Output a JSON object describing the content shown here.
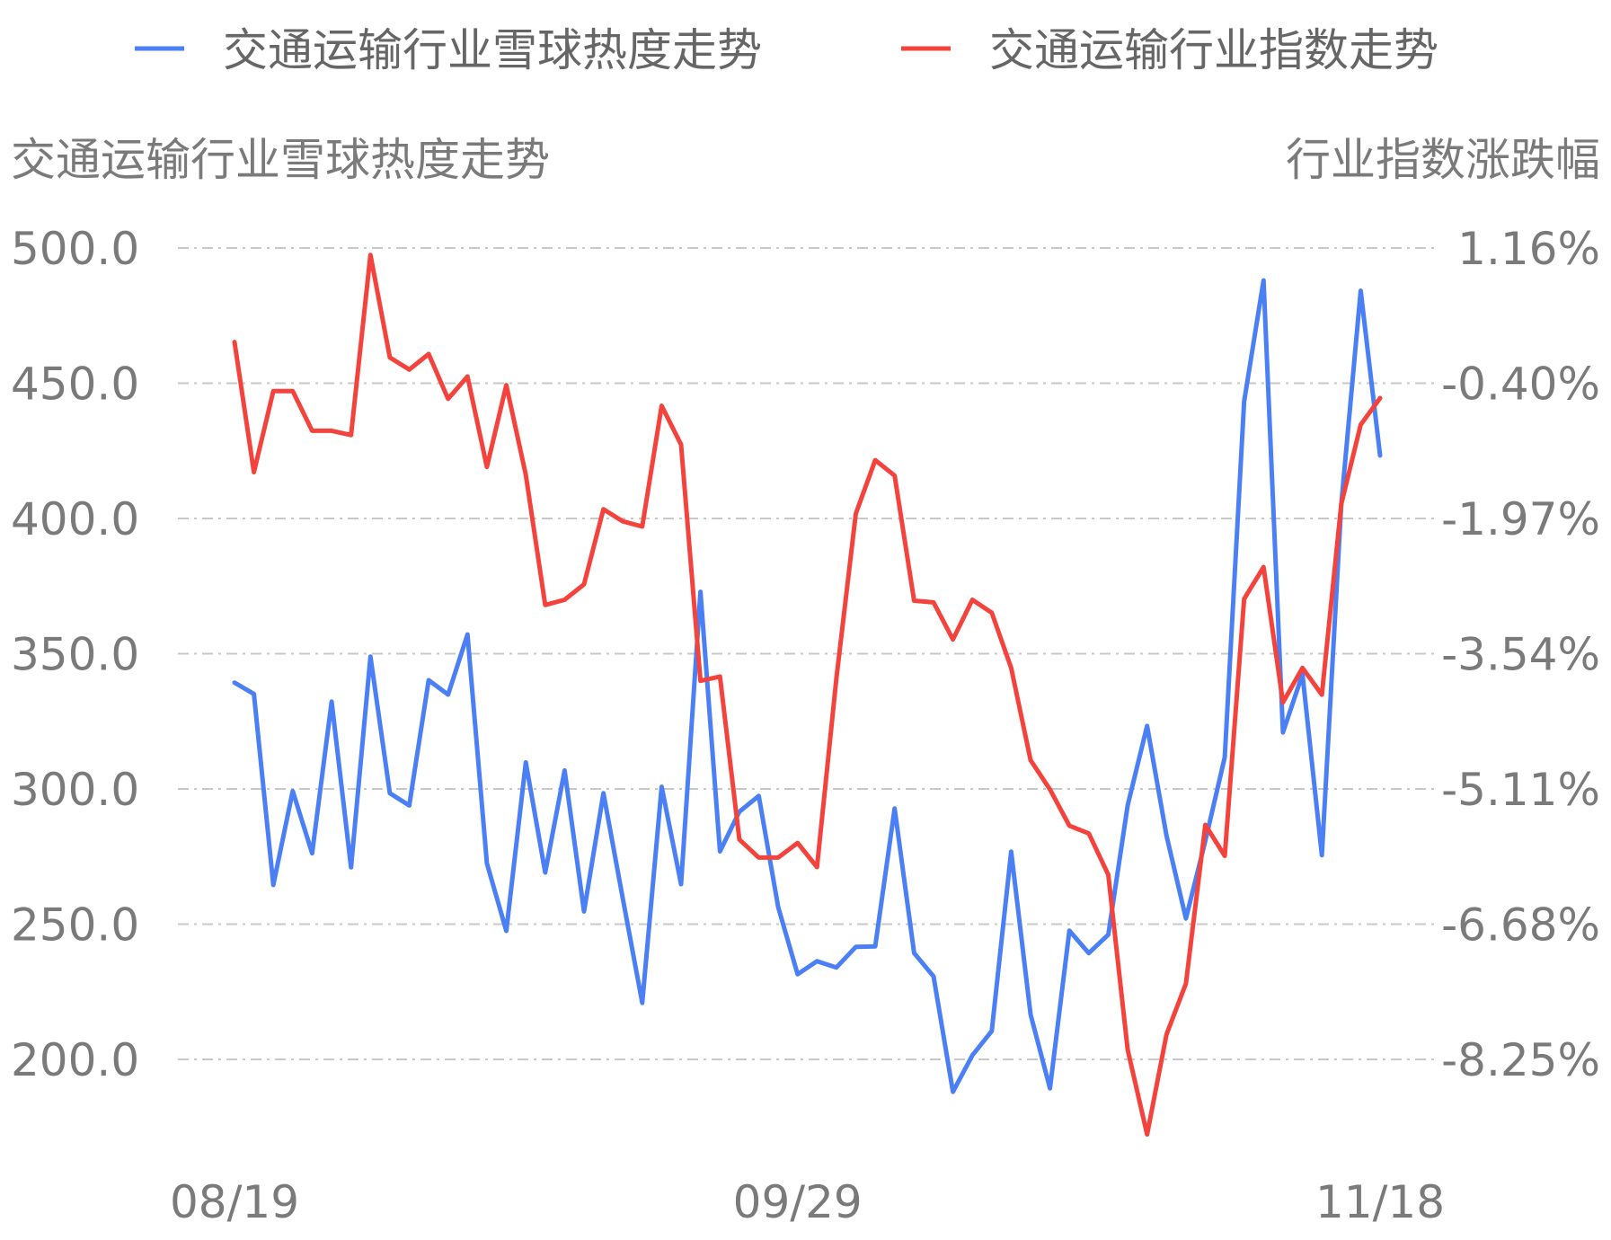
{
  "chart_data": {
    "type": "line",
    "x_labels_shown": [
      "08/19",
      "09/29",
      "11/18"
    ],
    "left_axis": {
      "label": "交通运输行业雪球热度走势",
      "ticks": [
        "500.0",
        "450.0",
        "400.0",
        "350.0",
        "300.0",
        "250.0",
        "200.0"
      ],
      "ylim": [
        200.0,
        500.0
      ]
    },
    "right_axis": {
      "label": "行业指数涨跌幅",
      "ticks": [
        "1.16%",
        "-0.40%",
        "-1.97%",
        "-3.54%",
        "-5.11%",
        "-6.68%",
        "-8.25%"
      ],
      "ylim": [
        -8.25,
        1.16
      ]
    },
    "grid": "horizontal dashed",
    "legend_position": "top",
    "series": [
      {
        "name": "交通运输行业雪球热度走势",
        "axis": "left",
        "color": "#4a7ff5",
        "values": [
          339.3,
          335.1,
          264.5,
          299.2,
          276.2,
          332.3,
          271.0,
          348.9,
          298.4,
          293.9,
          340.2,
          334.9,
          357.1,
          272.5,
          247.5,
          309.8,
          269.1,
          306.8,
          254.7,
          298.4,
          259.4,
          220.9,
          300.8,
          264.8,
          372.9,
          276.9,
          291.6,
          297.4,
          256.3,
          231.5,
          236.3,
          234.0,
          241.6,
          241.8,
          292.8,
          239.3,
          230.7,
          188.0,
          201.5,
          210.5,
          276.8,
          216.6,
          189.3,
          247.6,
          239.3,
          246.1,
          294.0,
          323.3,
          282.7,
          252.1,
          280.8,
          311.7,
          443.3,
          488.0,
          320.9,
          342.4,
          275.5,
          405.2,
          484.2,
          423.3
        ]
      },
      {
        "name": "交通运输行业指数走势",
        "axis": "right",
        "color": "#f4433c",
        "values": [
          0.07,
          -1.44,
          -0.5,
          -0.5,
          -0.96,
          -0.96,
          -1.01,
          1.08,
          -0.11,
          -0.25,
          -0.07,
          -0.59,
          -0.33,
          -1.38,
          -0.43,
          -1.47,
          -2.98,
          -2.92,
          -2.74,
          -1.87,
          -2.01,
          -2.07,
          -0.67,
          -1.12,
          -3.86,
          -3.81,
          -5.7,
          -5.91,
          -5.91,
          -5.74,
          -6.02,
          -3.83,
          -1.92,
          -1.3,
          -1.48,
          -2.93,
          -2.95,
          -3.38,
          -2.92,
          -3.07,
          -3.71,
          -4.78,
          -5.12,
          -5.54,
          -5.63,
          -6.11,
          -8.14,
          -9.12,
          -7.96,
          -7.37,
          -5.53,
          -5.89,
          -2.91,
          -2.54,
          -4.11,
          -3.71,
          -4.02,
          -1.81,
          -0.89,
          -0.58
        ]
      }
    ]
  }
}
